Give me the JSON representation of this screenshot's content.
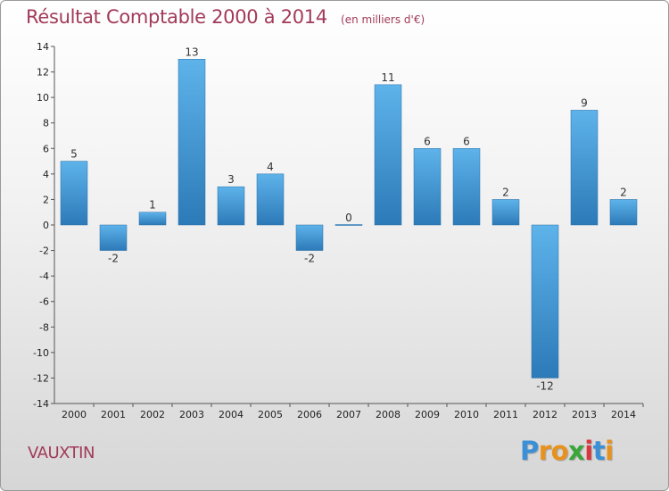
{
  "chart_data": {
    "type": "bar",
    "title": "Résultat Comptable 2000 à 2014",
    "subtitle": "(en milliers d'€)",
    "categories": [
      "2000",
      "2001",
      "2002",
      "2003",
      "2004",
      "2005",
      "2006",
      "2007",
      "2008",
      "2009",
      "2010",
      "2011",
      "2012",
      "2013",
      "2014"
    ],
    "values": [
      5,
      -2,
      1,
      13,
      3,
      4,
      -2,
      0,
      11,
      6,
      6,
      2,
      -12,
      9,
      2
    ],
    "ylim": [
      -14,
      14
    ],
    "yticks": [
      14,
      12,
      10,
      8,
      6,
      4,
      2,
      0,
      -2,
      -4,
      -6,
      -8,
      -10,
      -12,
      -14
    ],
    "xlabel": "",
    "ylabel": "",
    "grid": false,
    "colors": {
      "bar_light": "#5eb3ea",
      "bar_dark": "#2c7ab8",
      "title": "#a23a5a"
    }
  },
  "commune": "VAUXTIN",
  "logo": {
    "text": "Proxiti",
    "letters": [
      {
        "ch": "P",
        "color": "#3a8fd6"
      },
      {
        "ch": "r",
        "color": "#e8921e"
      },
      {
        "ch": "o",
        "color": "#e8921e"
      },
      {
        "ch": "x",
        "color": "#3aa63a"
      },
      {
        "ch": "i",
        "color": "#d9363e"
      },
      {
        "ch": "t",
        "color": "#3a8fd6"
      },
      {
        "ch": "i",
        "color": "#e8921e"
      }
    ]
  }
}
